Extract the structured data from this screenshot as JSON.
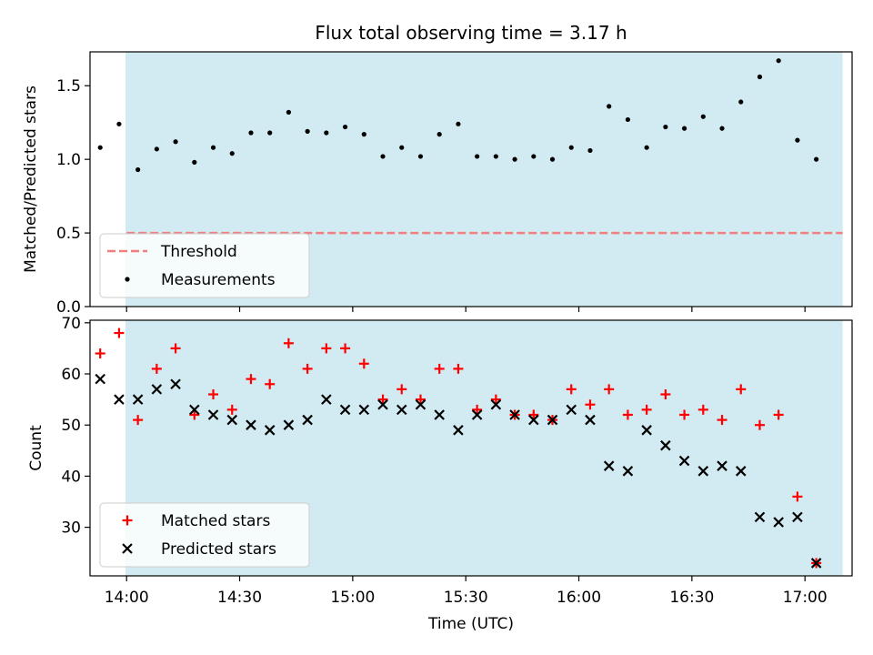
{
  "chart_data": {
    "title": "Flux total observing time = 3.17 h",
    "xlabel": "Time (UTC)",
    "x_tick_labels": [
      "14:00",
      "14:30",
      "15:00",
      "15:30",
      "16:00",
      "16:30",
      "17:00"
    ],
    "x_tick_minutes": [
      840,
      870,
      900,
      930,
      960,
      990,
      1020
    ],
    "xlim_minutes": [
      830.3,
      1032.5
    ],
    "shaded_span_minutes": [
      839.7,
      1030.0
    ],
    "shade_color": "#add8e6",
    "times": [
      "13:53",
      "13:58",
      "14:03",
      "14:08",
      "14:13",
      "14:18",
      "14:23",
      "14:28",
      "14:33",
      "14:38",
      "14:43",
      "14:48",
      "14:53",
      "14:58",
      "15:03",
      "15:08",
      "15:13",
      "15:18",
      "15:23",
      "15:28",
      "15:33",
      "15:38",
      "15:43",
      "15:48",
      "15:53",
      "15:58",
      "16:03",
      "16:08",
      "16:13",
      "16:18",
      "16:23",
      "16:28",
      "16:33",
      "16:38",
      "16:43",
      "16:48",
      "16:53",
      "16:58",
      "17:03"
    ],
    "panels": [
      {
        "type": "scatter",
        "ylabel": "Matched/Predicted stars",
        "ylim": [
          0.0,
          1.73
        ],
        "y_ticks": [
          0.0,
          0.5,
          1.0,
          1.5
        ],
        "y_tick_labels": [
          "0.0",
          "0.5",
          "1.0",
          "1.5"
        ],
        "legend_position": "lower-left",
        "threshold": {
          "name": "Threshold",
          "value": 0.5,
          "color": "#f08080",
          "x_range_minutes": [
            840,
            1030
          ]
        },
        "series": [
          {
            "name": "Measurements",
            "marker": "dot",
            "color": "#000000",
            "values": [
              1.08,
              1.24,
              0.93,
              1.07,
              1.12,
              0.98,
              1.08,
              1.04,
              1.18,
              1.18,
              1.32,
              1.19,
              1.18,
              1.22,
              1.17,
              1.02,
              1.08,
              1.02,
              1.17,
              1.24,
              1.02,
              1.02,
              1.0,
              1.02,
              1.0,
              1.08,
              1.06,
              1.36,
              1.27,
              1.08,
              1.22,
              1.21,
              1.29,
              1.21,
              1.39,
              1.56,
              1.67,
              1.13,
              1.0
            ]
          }
        ]
      },
      {
        "type": "scatter",
        "ylabel": "Count",
        "ylim": [
          20.5,
          70.5
        ],
        "y_ticks": [
          30,
          40,
          50,
          60,
          70
        ],
        "y_tick_labels": [
          "30",
          "40",
          "50",
          "60",
          "70"
        ],
        "legend_position": "lower-left",
        "series": [
          {
            "name": "Matched stars",
            "marker": "plus",
            "color": "#ff0000",
            "values": [
              64,
              68,
              51,
              61,
              65,
              52,
              56,
              53,
              59,
              58,
              66,
              61,
              65,
              65,
              62,
              55,
              57,
              55,
              61,
              61,
              53,
              55,
              52,
              52,
              51,
              57,
              54,
              57,
              52,
              53,
              56,
              52,
              53,
              51,
              57,
              50,
              52,
              36,
              23
            ]
          },
          {
            "name": "Predicted stars",
            "marker": "x",
            "color": "#000000",
            "values": [
              59,
              55,
              55,
              57,
              58,
              53,
              52,
              51,
              50,
              49,
              50,
              51,
              55,
              53,
              53,
              54,
              53,
              54,
              52,
              49,
              52,
              54,
              52,
              51,
              51,
              53,
              51,
              42,
              41,
              49,
              46,
              43,
              41,
              42,
              41,
              32,
              31,
              32,
              23
            ]
          }
        ]
      }
    ]
  }
}
